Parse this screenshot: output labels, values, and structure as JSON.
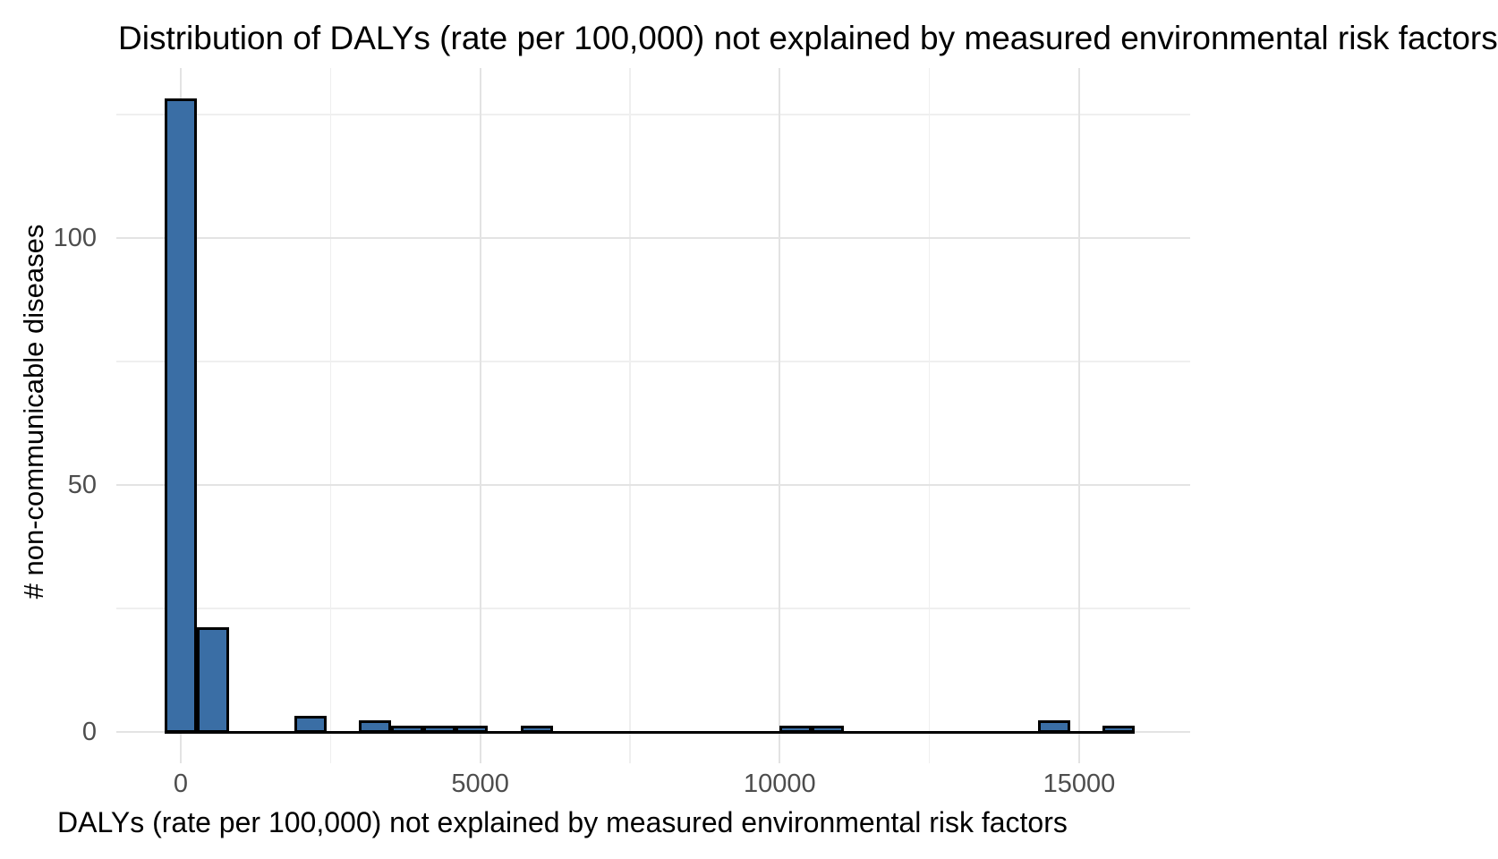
{
  "chart_data": {
    "type": "bar",
    "subtype": "histogram",
    "title": "Distribution of DALYs (rate per 100,000) not explained by measured environmental risk factors",
    "xlabel": "DALYs (rate per 100,000) not explained by measured environmental risk factors",
    "ylabel": "# non-communicable diseases",
    "bin_width": 540,
    "bin_range": [
      -270,
      15930
    ],
    "bins": [
      {
        "center": 0,
        "count": 128
      },
      {
        "center": 540,
        "count": 21
      },
      {
        "center": 2160,
        "count": 3
      },
      {
        "center": 3240,
        "count": 2
      },
      {
        "center": 3780,
        "count": 1
      },
      {
        "center": 4320,
        "count": 1
      },
      {
        "center": 4860,
        "count": 1
      },
      {
        "center": 5940,
        "count": 1
      },
      {
        "center": 10260,
        "count": 1
      },
      {
        "center": 10800,
        "count": 1
      },
      {
        "center": 14580,
        "count": 2
      },
      {
        "center": 15660,
        "count": 1
      }
    ],
    "x_ticks": [
      0,
      5000,
      10000,
      15000
    ],
    "x_minor_ticks": [
      2500,
      7500,
      12500
    ],
    "y_ticks": [
      0,
      50,
      100
    ],
    "y_minor_ticks": [
      25,
      75,
      125
    ],
    "xlim": [
      -1080,
      16860
    ],
    "ylim": [
      -6.4,
      134.4
    ],
    "grid": true,
    "legend_position": "none",
    "colors": {
      "bar_fill": "#3A6EA5",
      "bar_stroke": "#000000",
      "grid_major": "#E3E3E3",
      "grid_minor": "#EFEFEF",
      "tick_text": "#4D4D4D",
      "title_text": "#000000",
      "background": "#FFFFFF"
    }
  }
}
